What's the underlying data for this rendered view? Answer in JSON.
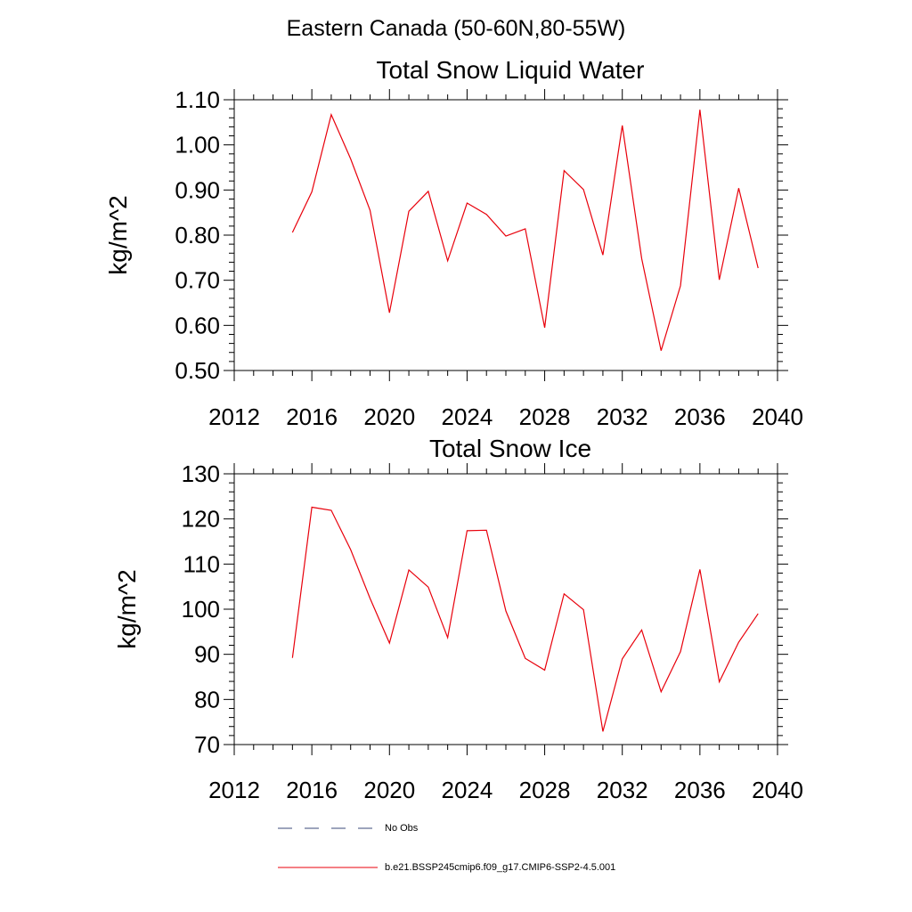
{
  "figure_title": "Eastern Canada (50-60N,80-55W)",
  "legend": {
    "obs_label": "No Obs",
    "obs_color": "#3b4a7a",
    "model_label": "b.e21.BSSP245cmip6.f09_g17.CMIP6-SSP2-4.5.001",
    "model_color": "#e8000b"
  },
  "chart_data": [
    {
      "type": "line",
      "title": "Total Snow Liquid Water",
      "ylabel": "kg/m^2",
      "xlabel": "",
      "xlim": [
        2012,
        2040
      ],
      "ylim": [
        0.5,
        1.1
      ],
      "xticks": [
        2012,
        2016,
        2020,
        2024,
        2028,
        2032,
        2036,
        2040
      ],
      "xtick_labels": [
        "2012",
        "2016",
        "2020",
        "2024",
        "2028",
        "2032",
        "2036",
        "2040"
      ],
      "yticks": [
        0.5,
        0.6,
        0.7,
        0.8,
        0.9,
        1.0,
        1.1
      ],
      "ytick_labels": [
        "0.50",
        "0.60",
        "0.70",
        "0.80",
        "0.90",
        "1.00",
        "1.10"
      ],
      "grid": false,
      "series": [
        {
          "color": "#e8000b",
          "x": [
            2015,
            2016,
            2017,
            2018,
            2019,
            2020,
            2021,
            2022,
            2023,
            2024,
            2025,
            2026,
            2027,
            2028,
            2029,
            2030,
            2031,
            2032,
            2033,
            2034,
            2035,
            2036,
            2037,
            2038,
            2039
          ],
          "y": [
            0.806,
            0.896,
            1.067,
            0.969,
            0.855,
            0.628,
            0.853,
            0.897,
            0.743,
            0.871,
            0.846,
            0.798,
            0.814,
            0.595,
            0.943,
            0.901,
            0.756,
            1.043,
            0.748,
            0.544,
            0.688,
            1.078,
            0.701,
            0.904,
            0.727
          ]
        }
      ]
    },
    {
      "type": "line",
      "title": "Total Snow Ice",
      "ylabel": "kg/m^2",
      "xlabel": "",
      "xlim": [
        2012,
        2040
      ],
      "ylim": [
        70,
        130
      ],
      "xticks": [
        2012,
        2016,
        2020,
        2024,
        2028,
        2032,
        2036,
        2040
      ],
      "xtick_labels": [
        "2012",
        "2016",
        "2020",
        "2024",
        "2028",
        "2032",
        "2036",
        "2040"
      ],
      "yticks": [
        70,
        80,
        90,
        100,
        110,
        120,
        130
      ],
      "ytick_labels": [
        "70",
        "80",
        "90",
        "100",
        "110",
        "120",
        "130"
      ],
      "grid": false,
      "series": [
        {
          "color": "#e8000b",
          "x": [
            2015,
            2016,
            2017,
            2018,
            2019,
            2020,
            2021,
            2022,
            2023,
            2024,
            2025,
            2026,
            2027,
            2028,
            2029,
            2030,
            2031,
            2032,
            2033,
            2034,
            2035,
            2036,
            2037,
            2038,
            2039
          ],
          "y": [
            89.2,
            122.6,
            121.9,
            113.2,
            102.4,
            92.5,
            108.7,
            104.9,
            93.7,
            117.4,
            117.5,
            99.6,
            89.1,
            86.5,
            103.4,
            99.9,
            72.9,
            89.0,
            95.4,
            81.7,
            90.6,
            108.8,
            83.9,
            92.7,
            99.0
          ]
        }
      ]
    }
  ]
}
